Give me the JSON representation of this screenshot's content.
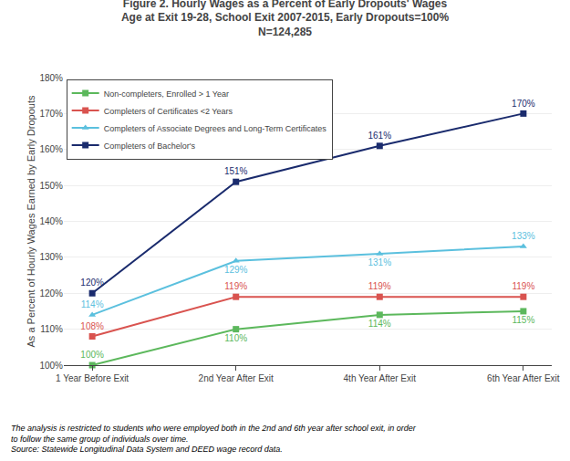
{
  "chart_data": {
    "type": "line",
    "title": "Figure 2. Hourly Wages as a Percent of Early Dropouts' Wages\nAge at Exit 19-28, School Exit 2007-2015, Early Dropouts=100%\nN=124,285",
    "categories": [
      "1 Year Before Exit",
      "2nd Year After Exit",
      "4th Year After Exit",
      "6th Year After Exit"
    ],
    "series": [
      {
        "name": "Non-completers, Enrolled > 1 Year",
        "color": "#5cb85c",
        "marker": "square",
        "values": [
          100,
          110,
          114,
          115
        ],
        "value_labels": [
          "100%",
          "110%",
          "114%",
          "115%"
        ]
      },
      {
        "name": "Completers of Certificates <2 Years",
        "color": "#d9534f",
        "marker": "square",
        "values": [
          108,
          119,
          119,
          119
        ],
        "value_labels": [
          "108%",
          "119%",
          "119%",
          "119%"
        ]
      },
      {
        "name": "Completers of Associate Degrees and Long-Term Certificates",
        "color": "#5bc0de",
        "marker": "triangle",
        "values": [
          114,
          129,
          131,
          133
        ],
        "value_labels": [
          "114%",
          "129%",
          "131%",
          "133%"
        ]
      },
      {
        "name": "Completers of Bachelor's",
        "color": "#1a2b6d",
        "marker": "square",
        "values": [
          120,
          151,
          161,
          170
        ],
        "value_labels": [
          "120%",
          "151%",
          "161%",
          "170%"
        ]
      }
    ],
    "ylabel": "As a Percent of Hourly Wages Earned by Early Dropouts",
    "ylim": [
      100,
      180
    ],
    "yticks": [
      {
        "value": 100,
        "label": "100%"
      },
      {
        "value": 110,
        "label": "110%"
      },
      {
        "value": 120,
        "label": "120%"
      },
      {
        "value": 130,
        "label": "130%"
      },
      {
        "value": 140,
        "label": "140%"
      },
      {
        "value": 150,
        "label": "150%"
      },
      {
        "value": 160,
        "label": "160%"
      },
      {
        "value": 170,
        "label": "170%"
      },
      {
        "value": 180,
        "label": "180%"
      }
    ],
    "grid": true,
    "legend": "upper left",
    "data_labels": true,
    "annotations": [
      "The analysis is restricted to students who were employed both in the 2nd and 6th year after school exit, in order",
      "to follow the same group of individuals over time.",
      "Source: Statewide Longitudinal Data System and DEED wage record data."
    ]
  }
}
